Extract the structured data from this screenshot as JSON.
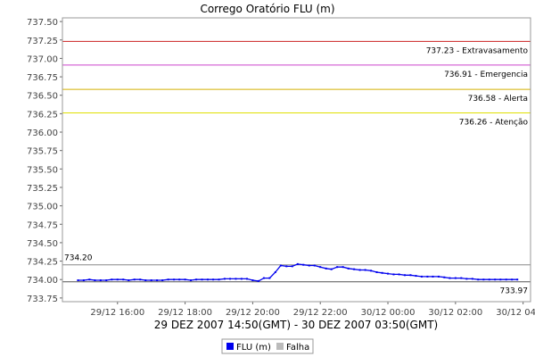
{
  "chart_data": {
    "type": "line",
    "title": "Corrego Oratório FLU (m)",
    "xlabel": "29 DEZ 2007 14:50(GMT) - 30 DEZ 2007 03:50(GMT)",
    "ylabel": "",
    "ylim": [
      733.7,
      737.55
    ],
    "yticks": [
      "737.50",
      "737.25",
      "737.00",
      "736.75",
      "736.50",
      "736.25",
      "736.00",
      "735.75",
      "735.50",
      "735.25",
      "735.00",
      "734.75",
      "734.50",
      "734.25",
      "734.00",
      "733.75"
    ],
    "xlim_hours": [
      14.37,
      28.22
    ],
    "xticks": [
      {
        "label": "29/12 16:00",
        "hour": 16
      },
      {
        "label": "29/12 18:00",
        "hour": 18
      },
      {
        "label": "29/12 20:00",
        "hour": 20
      },
      {
        "label": "29/12 22:00",
        "hour": 22
      },
      {
        "label": "30/12 00:00",
        "hour": 24
      },
      {
        "label": "30/12 02:00",
        "hour": 26
      },
      {
        "label": "30/12 04:00",
        "hour": 28
      }
    ],
    "threshold_lines": [
      {
        "value": 737.23,
        "label": "737.23 - Extravasamento",
        "color": "#cc2020"
      },
      {
        "value": 736.91,
        "label": "736.91 - Emergencia",
        "color": "#cc44cc"
      },
      {
        "value": 736.58,
        "label": "736.58 - Alerta",
        "color": "#d4b000"
      },
      {
        "value": 736.26,
        "label": "736.26 - Atenção",
        "color": "#e0e000"
      }
    ],
    "reference_lines": [
      {
        "value": 734.2,
        "label": "734.20",
        "color": "#888888"
      },
      {
        "value": 733.97,
        "label": "733.97",
        "color": "#555555"
      }
    ],
    "series": [
      {
        "name": "FLU (m)",
        "color": "#0000ee",
        "x": [
          14.83,
          15.0,
          15.17,
          15.33,
          15.5,
          15.67,
          15.83,
          16.0,
          16.17,
          16.33,
          16.5,
          16.67,
          16.83,
          17.0,
          17.17,
          17.33,
          17.5,
          17.67,
          17.83,
          18.0,
          18.17,
          18.33,
          18.5,
          18.67,
          18.83,
          19.0,
          19.17,
          19.33,
          19.5,
          19.67,
          19.83,
          20.0,
          20.17,
          20.33,
          20.5,
          20.67,
          20.83,
          21.0,
          21.17,
          21.33,
          21.5,
          21.67,
          21.83,
          22.0,
          22.17,
          22.33,
          22.5,
          22.67,
          22.83,
          23.0,
          23.17,
          23.33,
          23.5,
          23.67,
          23.83,
          24.0,
          24.17,
          24.33,
          24.5,
          24.67,
          24.83,
          25.0,
          25.17,
          25.33,
          25.5,
          25.67,
          25.83,
          26.0,
          26.17,
          26.33,
          26.5,
          26.67,
          26.83,
          27.0,
          27.17,
          27.33,
          27.5,
          27.67,
          27.83
        ],
        "values": [
          733.99,
          733.99,
          734.0,
          733.99,
          733.99,
          733.99,
          734.0,
          734.0,
          734.0,
          733.99,
          734.0,
          734.0,
          733.99,
          733.99,
          733.99,
          733.99,
          734.0,
          734.0,
          734.0,
          734.0,
          733.99,
          734.0,
          734.0,
          734.0,
          734.0,
          734.0,
          734.01,
          734.01,
          734.01,
          734.01,
          734.01,
          733.99,
          733.98,
          734.02,
          734.02,
          734.1,
          734.19,
          734.18,
          734.18,
          734.21,
          734.2,
          734.19,
          734.19,
          734.17,
          734.15,
          734.14,
          734.17,
          734.17,
          734.15,
          734.14,
          734.13,
          734.13,
          734.12,
          734.1,
          734.09,
          734.08,
          734.07,
          734.07,
          734.06,
          734.06,
          734.05,
          734.04,
          734.04,
          734.04,
          734.04,
          734.03,
          734.02,
          734.02,
          734.02,
          734.01,
          734.01,
          734.0,
          734.0,
          734.0,
          734.0,
          734.0,
          734.0,
          734.0,
          734.0
        ]
      }
    ],
    "legend": {
      "placement": "bottom-center",
      "entries": [
        {
          "label": "FLU (m)",
          "color": "#0000ee"
        },
        {
          "label": "Falha",
          "color": "#bbbbbb"
        }
      ]
    },
    "grid": false
  }
}
